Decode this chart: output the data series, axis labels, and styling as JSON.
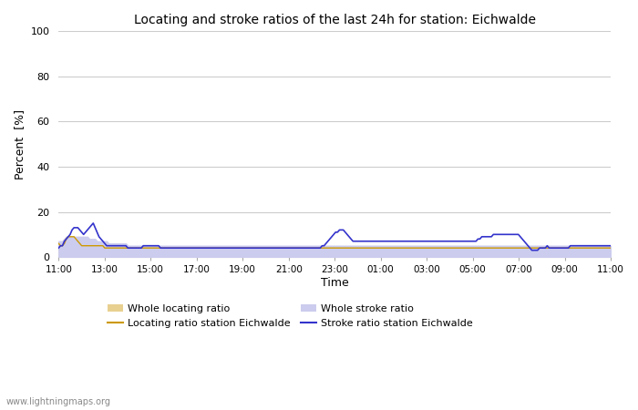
{
  "title": "Locating and stroke ratios of the last 24h for station: Eichwalde",
  "xlabel": "Time",
  "ylabel": "Percent  [%]",
  "ylim": [
    0,
    100
  ],
  "yticks": [
    0,
    20,
    40,
    60,
    80,
    100
  ],
  "watermark": "www.lightningmaps.org",
  "x_labels": [
    "11:00",
    "13:00",
    "15:00",
    "17:00",
    "19:00",
    "21:00",
    "23:00",
    "01:00",
    "03:00",
    "05:00",
    "07:00",
    "09:00",
    "11:00"
  ],
  "colors": {
    "locating_line": "#cc9900",
    "stroke_line": "#3333cc",
    "locating_fill": "#e8d090",
    "stroke_fill": "#ccccee",
    "background": "#ffffff",
    "grid": "#cccccc"
  },
  "whole_locating_ratio": [
    6,
    6,
    7,
    8,
    9,
    9,
    8,
    7,
    6,
    5,
    5,
    5,
    4,
    4,
    4,
    4,
    4,
    4,
    4,
    4,
    4,
    4,
    4,
    4,
    4,
    3,
    3,
    3,
    3,
    3,
    3,
    3,
    3,
    3,
    3,
    3,
    3,
    3,
    3,
    3,
    3,
    3,
    3,
    3,
    3,
    3,
    3,
    3,
    3,
    3,
    3,
    3,
    3,
    3,
    3,
    3,
    3,
    3,
    3,
    3,
    3,
    3,
    3,
    3,
    3,
    3,
    3,
    3,
    3,
    3,
    3,
    3,
    3,
    3,
    3,
    3,
    3,
    3,
    3,
    3,
    3,
    3,
    3,
    3,
    3,
    3,
    3,
    3,
    3,
    3,
    3,
    3,
    3,
    3,
    3,
    3,
    3,
    3,
    3,
    3,
    3,
    3,
    3,
    3,
    3,
    3,
    3,
    3,
    3,
    3,
    3,
    3,
    3,
    3,
    3,
    3,
    3,
    3,
    3,
    3,
    3,
    3,
    3,
    3,
    3,
    3,
    3,
    3,
    3,
    3,
    3,
    3,
    3,
    3,
    3,
    3,
    3,
    3,
    3,
    3,
    3,
    3,
    3,
    3,
    3,
    3,
    3,
    3,
    3,
    3,
    3,
    3,
    3,
    3,
    3,
    3,
    3,
    3,
    3,
    3,
    3,
    3,
    3,
    3,
    3,
    3,
    3,
    3,
    3,
    3,
    3,
    3,
    3,
    3,
    3,
    3,
    3,
    3,
    3,
    3,
    3,
    3,
    3,
    3,
    3,
    3,
    3,
    3,
    3,
    3,
    3,
    3,
    3,
    3,
    3,
    3,
    3,
    3,
    3,
    3,
    3,
    3,
    3,
    3,
    3,
    3,
    3,
    3,
    3,
    3,
    3,
    3,
    3,
    3,
    3,
    3,
    3,
    3,
    3,
    3,
    3,
    3,
    3,
    3,
    3,
    3,
    3,
    3,
    3,
    3,
    3,
    3,
    3,
    3,
    3,
    3,
    3,
    3,
    3,
    3,
    3,
    3,
    3,
    3,
    3,
    3,
    3,
    3,
    3,
    3,
    3,
    3,
    3,
    3,
    3,
    3,
    3,
    3,
    3,
    3,
    3,
    3,
    3,
    3,
    3,
    3,
    3,
    3,
    3,
    3,
    3,
    3,
    3,
    3,
    3,
    3,
    3,
    3,
    3,
    3,
    3,
    3,
    3,
    3,
    3,
    3,
    3,
    3
  ],
  "locating_station": [
    6,
    5,
    5,
    6,
    8,
    9,
    9,
    9,
    9,
    8,
    7,
    6,
    5,
    5,
    5,
    5,
    5,
    5,
    5,
    5,
    5,
    5,
    5,
    5,
    4,
    4,
    4,
    4,
    4,
    4,
    4,
    4,
    4,
    4,
    4,
    4,
    4,
    4,
    4,
    4,
    4,
    4,
    4,
    4,
    4,
    4,
    4,
    4,
    4,
    4,
    4,
    4,
    4,
    4,
    4,
    4,
    4,
    4,
    4,
    4,
    4,
    4,
    4,
    4,
    4,
    4,
    4,
    4,
    4,
    4,
    4,
    4,
    4,
    4,
    4,
    4,
    4,
    4,
    4,
    4,
    4,
    4,
    4,
    4,
    4,
    4,
    4,
    4,
    4,
    4,
    4,
    4,
    4,
    4,
    4,
    4,
    4,
    4,
    4,
    4,
    4,
    4,
    4,
    4,
    4,
    4,
    4,
    4,
    4,
    4,
    4,
    4,
    4,
    4,
    4,
    4,
    4,
    4,
    4,
    4,
    4,
    4,
    4,
    4,
    4,
    4,
    4,
    4,
    4,
    4,
    4,
    4,
    4,
    4,
    4,
    4,
    4,
    4,
    4,
    4,
    4,
    4,
    4,
    4,
    4,
    4,
    4,
    4,
    4,
    4,
    4,
    4,
    4,
    4,
    4,
    4,
    4,
    4,
    4,
    4,
    4,
    4,
    4,
    4,
    4,
    4,
    4,
    4,
    4,
    4,
    4,
    4,
    4,
    4,
    4,
    4,
    4,
    4,
    4,
    4,
    4,
    4,
    4,
    4,
    4,
    4,
    4,
    4,
    4,
    4,
    4,
    4,
    4,
    4,
    4,
    4,
    4,
    4,
    4,
    4,
    4,
    4,
    4,
    4,
    4,
    4,
    4,
    4,
    4,
    4,
    4,
    4,
    4,
    4,
    4,
    4,
    4,
    4,
    4,
    4,
    4,
    4,
    4,
    4,
    4,
    4,
    4,
    4,
    4,
    4,
    4,
    4,
    4,
    4,
    4,
    4,
    4,
    4,
    4,
    4,
    4,
    4,
    4,
    4,
    4,
    4,
    4,
    4,
    4,
    4,
    4,
    4,
    4,
    4,
    4,
    4,
    4,
    4,
    4,
    4,
    4,
    4,
    4,
    4,
    4,
    4,
    4,
    4,
    4,
    4,
    4,
    4,
    4,
    4,
    4,
    4,
    4,
    4,
    4,
    4,
    4,
    4,
    4,
    4,
    4,
    4,
    4,
    4
  ],
  "whole_stroke_ratio": [
    7,
    7,
    7,
    8,
    9,
    9,
    9,
    9,
    9,
    9,
    9,
    9,
    9,
    9,
    9,
    9,
    8,
    8,
    8,
    8,
    7,
    7,
    7,
    7,
    7,
    7,
    6,
    6,
    6,
    6,
    6,
    6,
    6,
    6,
    6,
    6,
    5,
    5,
    5,
    5,
    5,
    5,
    5,
    5,
    5,
    5,
    5,
    5,
    5,
    5,
    5,
    5,
    5,
    5,
    5,
    5,
    5,
    5,
    5,
    5,
    5,
    5,
    5,
    5,
    5,
    5,
    5,
    5,
    5,
    5,
    5,
    5,
    5,
    5,
    5,
    5,
    5,
    5,
    5,
    5,
    5,
    5,
    5,
    5,
    5,
    5,
    5,
    5,
    5,
    5,
    5,
    5,
    5,
    5,
    5,
    5,
    5,
    5,
    5,
    5,
    5,
    5,
    5,
    5,
    5,
    5,
    5,
    5,
    5,
    5,
    5,
    5,
    5,
    5,
    5,
    5,
    5,
    5,
    5,
    5,
    5,
    5,
    5,
    5,
    5,
    5,
    5,
    5,
    5,
    5,
    5,
    5,
    5,
    5,
    5,
    5,
    5,
    5,
    5,
    5,
    5,
    5,
    5,
    5,
    5,
    5,
    5,
    5,
    5,
    5,
    5,
    5,
    5,
    5,
    5,
    5,
    5,
    5,
    5,
    5,
    5,
    5,
    5,
    5,
    5,
    5,
    5,
    5,
    5,
    5,
    5,
    5,
    5,
    5,
    5,
    5,
    5,
    5,
    5,
    5,
    5,
    5,
    5,
    5,
    5,
    5,
    5,
    5,
    5,
    5,
    5,
    5,
    5,
    5,
    5,
    5,
    5,
    5,
    5,
    5,
    5,
    5,
    5,
    5,
    5,
    5,
    5,
    5,
    5,
    5,
    5,
    5,
    5,
    5,
    5,
    5,
    5,
    5,
    5,
    5,
    5,
    5,
    5,
    5,
    5,
    5,
    5,
    5,
    5,
    5,
    5,
    5,
    5,
    5,
    5,
    5,
    5,
    5,
    5,
    5,
    5,
    5,
    5,
    5,
    5,
    5,
    5,
    5,
    5,
    5,
    5,
    5,
    5,
    5,
    5,
    5,
    5,
    5,
    5,
    5,
    5,
    5,
    5,
    5,
    5,
    5,
    5,
    5,
    5,
    5,
    5,
    5,
    5,
    5,
    5,
    5,
    5,
    5,
    5,
    5,
    5,
    5,
    5,
    5,
    5,
    5,
    5,
    5
  ],
  "stroke_station": [
    4,
    5,
    5,
    7,
    8,
    9,
    10,
    12,
    13,
    13,
    13,
    12,
    11,
    10,
    11,
    12,
    13,
    14,
    15,
    13,
    11,
    9,
    8,
    7,
    6,
    5,
    5,
    5,
    5,
    5,
    5,
    5,
    5,
    5,
    5,
    5,
    4,
    4,
    4,
    4,
    4,
    4,
    4,
    4,
    5,
    5,
    5,
    5,
    5,
    5,
    5,
    5,
    5,
    4,
    4,
    4,
    4,
    4,
    4,
    4,
    4,
    4,
    4,
    4,
    4,
    4,
    4,
    4,
    4,
    4,
    4,
    4,
    4,
    4,
    4,
    4,
    4,
    4,
    4,
    4,
    4,
    4,
    4,
    4,
    4,
    4,
    4,
    4,
    4,
    4,
    4,
    4,
    4,
    4,
    4,
    4,
    4,
    4,
    4,
    4,
    4,
    4,
    4,
    4,
    4,
    4,
    4,
    4,
    4,
    4,
    4,
    4,
    4,
    4,
    4,
    4,
    4,
    4,
    4,
    4,
    4,
    4,
    4,
    4,
    4,
    4,
    4,
    4,
    4,
    4,
    4,
    4,
    4,
    4,
    4,
    4,
    4,
    5,
    5,
    6,
    7,
    8,
    9,
    10,
    11,
    11,
    12,
    12,
    12,
    11,
    10,
    9,
    8,
    7,
    7,
    7,
    7,
    7,
    7,
    7,
    7,
    7,
    7,
    7,
    7,
    7,
    7,
    7,
    7,
    7,
    7,
    7,
    7,
    7,
    7,
    7,
    7,
    7,
    7,
    7,
    7,
    7,
    7,
    7,
    7,
    7,
    7,
    7,
    7,
    7,
    7,
    7,
    7,
    7,
    7,
    7,
    7,
    7,
    7,
    7,
    7,
    7,
    7,
    7,
    7,
    7,
    7,
    7,
    7,
    7,
    7,
    7,
    7,
    7,
    7,
    7,
    7,
    7,
    8,
    8,
    9,
    9,
    9,
    9,
    9,
    9,
    10,
    10,
    10,
    10,
    10,
    10,
    10,
    10,
    10,
    10,
    10,
    10,
    10,
    10,
    9,
    8,
    7,
    6,
    5,
    4,
    3,
    3,
    3,
    3,
    4,
    4,
    4,
    4,
    5,
    4,
    4,
    4,
    4,
    4,
    4,
    4,
    4,
    4,
    4,
    4,
    5,
    5,
    5,
    5,
    5,
    5,
    5,
    5,
    5,
    5,
    5,
    5,
    5,
    5,
    5,
    5,
    5,
    5,
    5,
    5,
    5,
    5
  ]
}
